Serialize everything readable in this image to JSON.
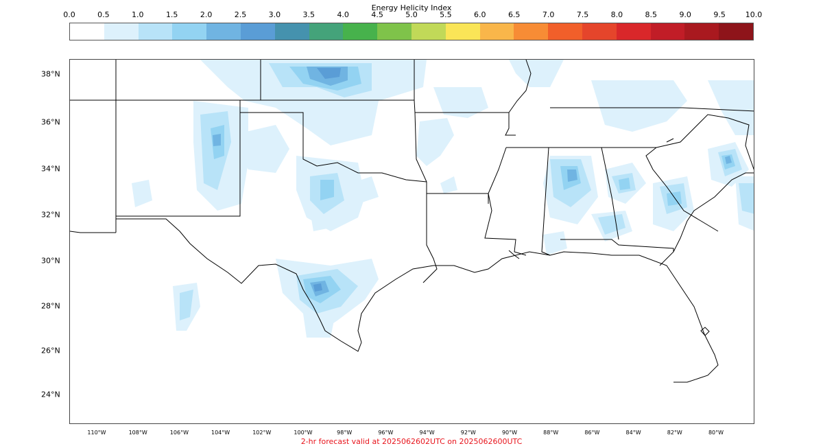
{
  "colorbar": {
    "title": "Energy Helicity Index",
    "ticks": [
      "0.0",
      "0.5",
      "1.0",
      "1.5",
      "2.0",
      "2.5",
      "3.0",
      "3.5",
      "4.0",
      "4.5",
      "5.0",
      "5.5",
      "6.0",
      "6.5",
      "7.0",
      "7.5",
      "8.0",
      "8.5",
      "9.0",
      "9.5",
      "10.0"
    ],
    "colors": [
      "#ffffff",
      "#ddf1fc",
      "#b8e3f8",
      "#93d3f2",
      "#70b4e2",
      "#5a9dd6",
      "#4592ae",
      "#44a37a",
      "#47b24c",
      "#7fc34a",
      "#c1d958",
      "#fae557",
      "#f9b64a",
      "#f78c35",
      "#f15f2a",
      "#e5452b",
      "#d9272a",
      "#c11d27",
      "#a9191f",
      "#8e141a"
    ]
  },
  "map": {
    "lat_labels": [
      "38°N",
      "36°N",
      "34°N",
      "32°N",
      "30°N",
      "28°N",
      "26°N",
      "24°N"
    ],
    "lon_labels": [
      "110°W",
      "108°W",
      "106°W",
      "104°W",
      "102°W",
      "100°W",
      "98°W",
      "96°W",
      "94°W",
      "92°W",
      "90°W",
      "88°W",
      "86°W",
      "84°W",
      "82°W",
      "80°W"
    ],
    "field_colors": {
      "level1": "#ddf1fc",
      "level2": "#b8e3f8",
      "level3": "#93d3f2",
      "level4": "#70b4e2",
      "level5": "#5a9dd6"
    }
  },
  "footer": {
    "caption": "2-hr forecast valid at 2025062602UTC on 2025062600UTC"
  }
}
